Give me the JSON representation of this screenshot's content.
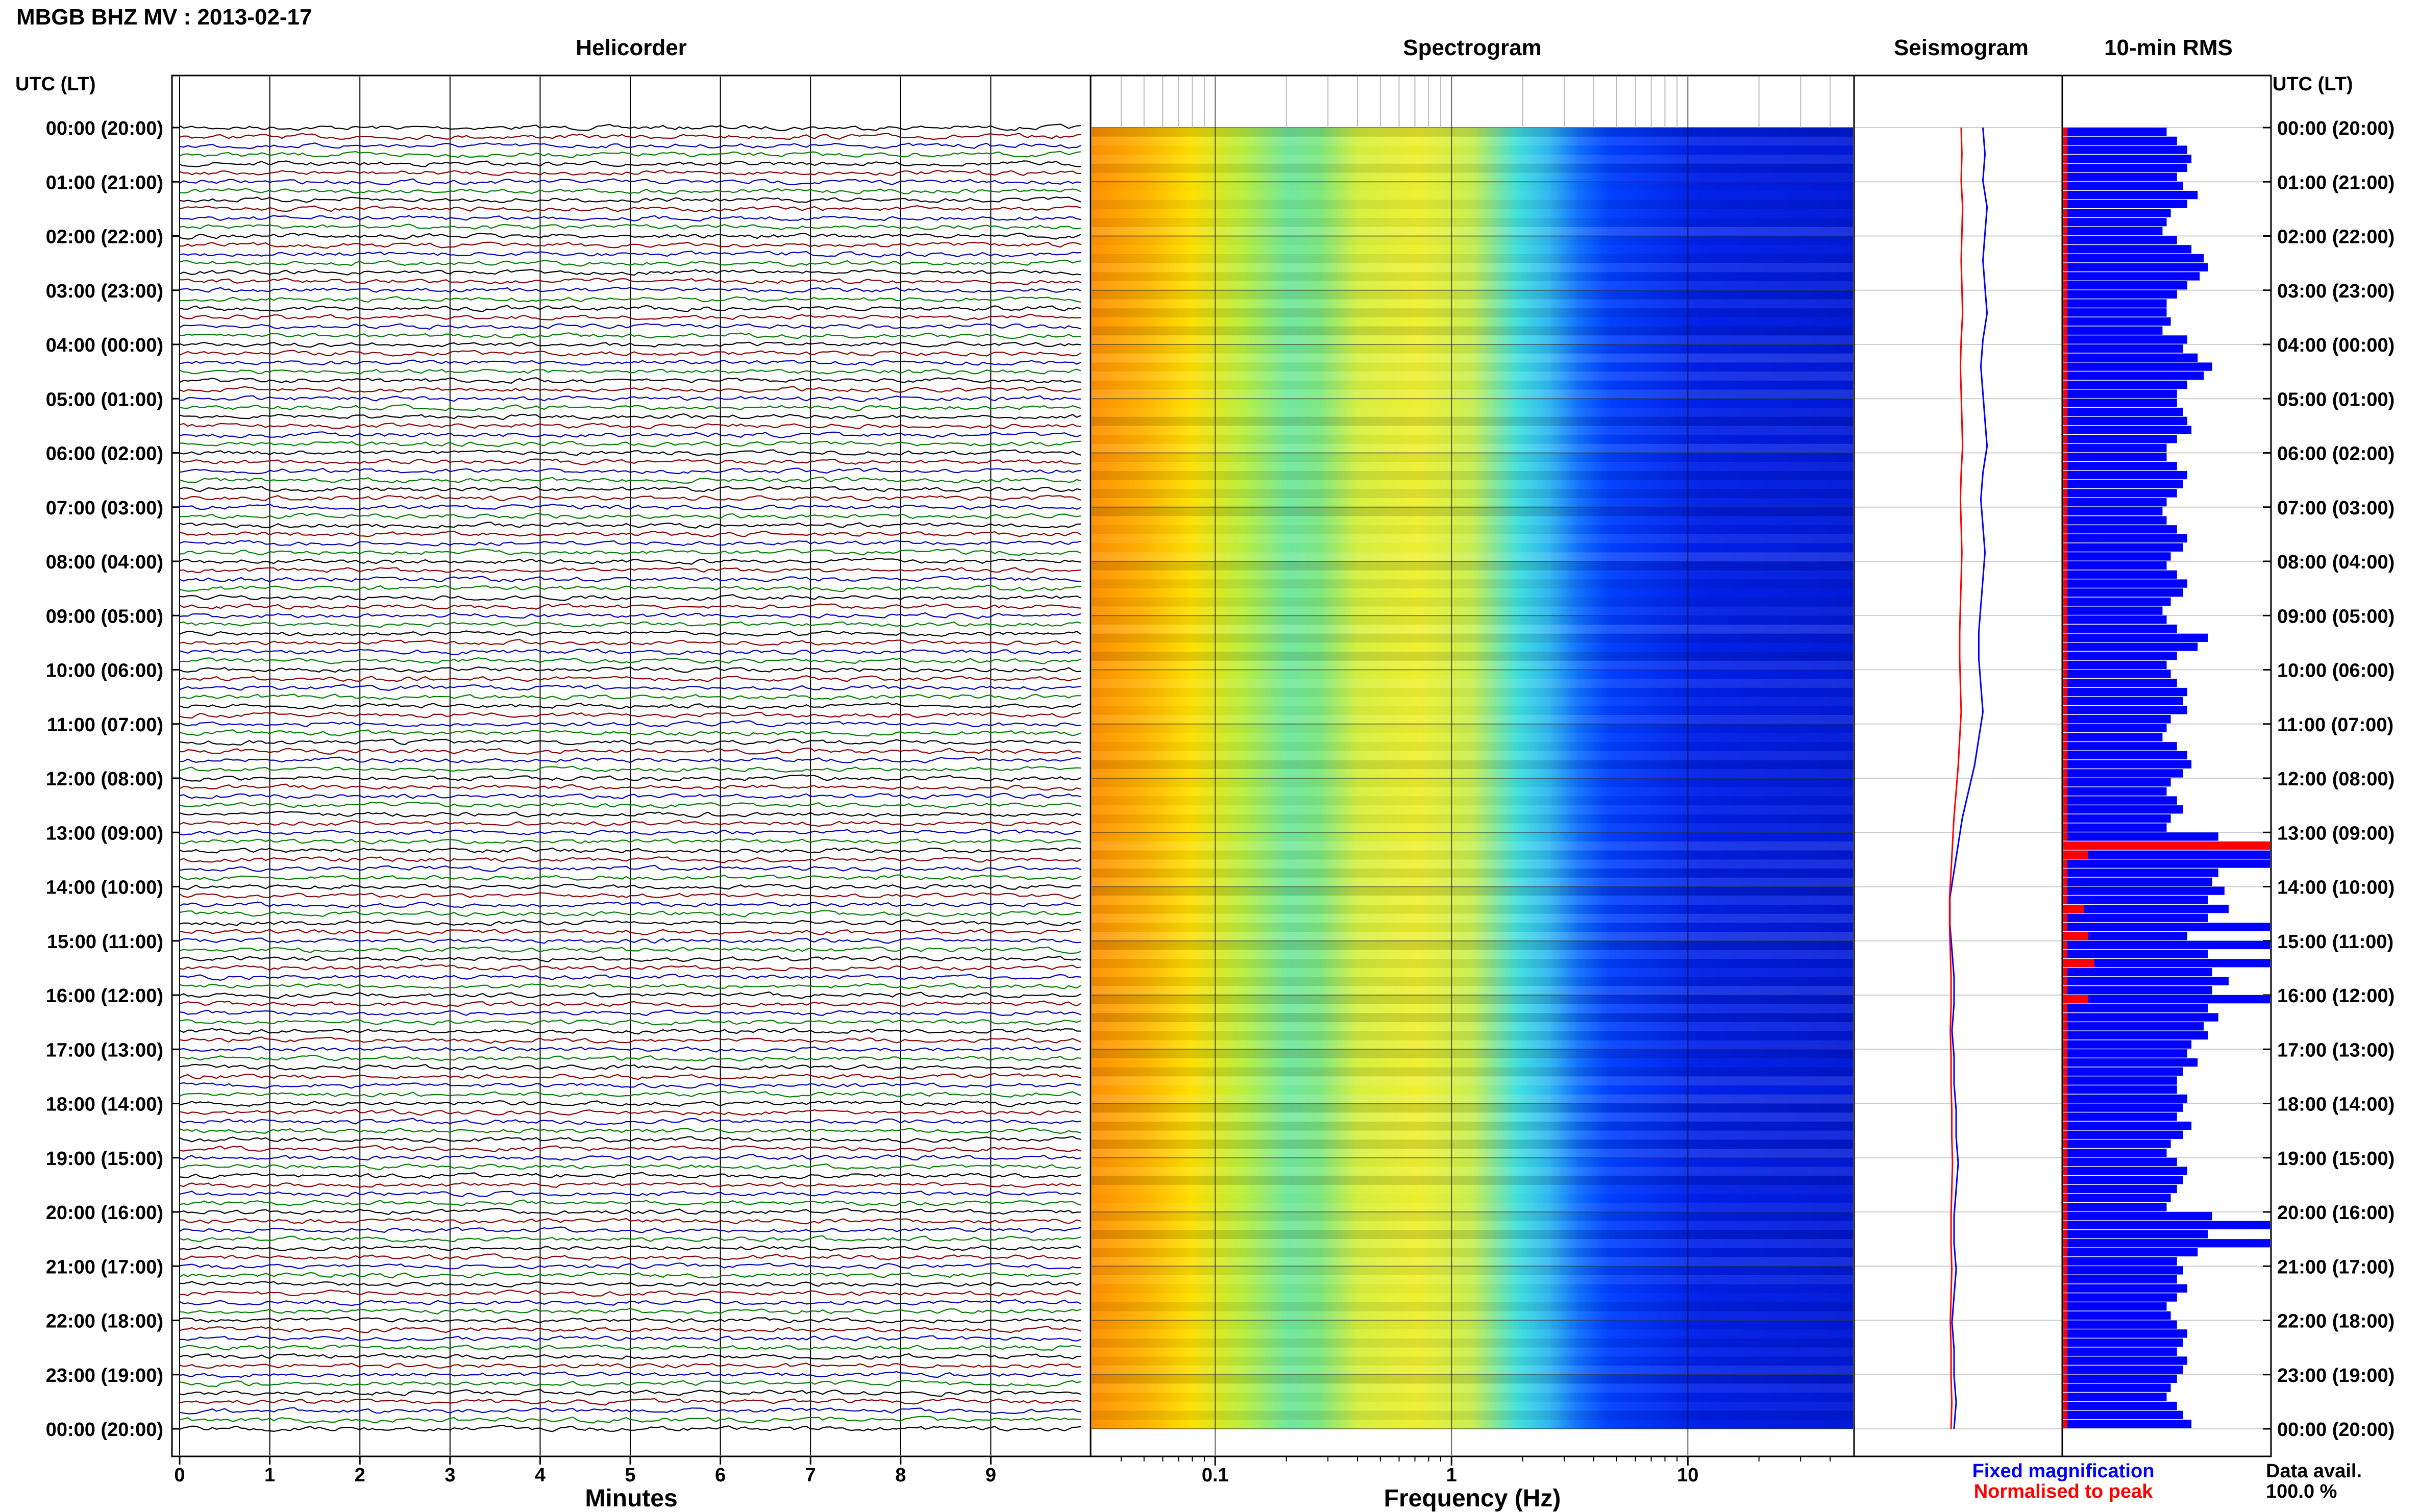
{
  "header": {
    "title": "MBGB BHZ MV : 2013-02-17"
  },
  "panels": {
    "helicorder": "Helicorder",
    "spectrogram": "Spectrogram",
    "seismogram": "Seismogram",
    "rms": "10-min RMS"
  },
  "axes": {
    "left_header": "UTC (LT)",
    "right_header": "UTC (LT)",
    "minutes_label": "Minutes",
    "frequency_label": "Frequency (Hz)"
  },
  "legend": {
    "fixed": "Fixed magnification",
    "normalised": "Normalised to peak",
    "fixed_color": "#0000ff",
    "normalised_color": "#ff0000"
  },
  "data_avail": {
    "label": "Data avail.",
    "value": "100.0 %"
  },
  "colors": {
    "trace_cycle": [
      "#000000",
      "#8b0000",
      "#0000b4",
      "#008000"
    ],
    "rms_bar": "#0000ff",
    "rms_norm": "#ff0000"
  },
  "chart_data": {
    "type": "heatmap",
    "time_labels": [
      "00:00 (20:00)",
      "01:00 (21:00)",
      "02:00 (22:00)",
      "03:00 (23:00)",
      "04:00 (00:00)",
      "05:00 (01:00)",
      "06:00 (02:00)",
      "07:00 (03:00)",
      "08:00 (04:00)",
      "09:00 (05:00)",
      "10:00 (06:00)",
      "11:00 (07:00)",
      "12:00 (08:00)",
      "13:00 (09:00)",
      "14:00 (10:00)",
      "15:00 (11:00)",
      "16:00 (12:00)",
      "17:00 (13:00)",
      "18:00 (14:00)",
      "19:00 (15:00)",
      "20:00 (16:00)",
      "21:00 (17:00)",
      "22:00 (18:00)",
      "23:00 (19:00)",
      "00:00 (20:00)"
    ],
    "minute_ticks": [
      "0",
      "1",
      "2",
      "3",
      "4",
      "5",
      "6",
      "7",
      "8",
      "9"
    ],
    "frequency_ticks": [
      "0.1",
      "1",
      "10"
    ],
    "xlim_minutes": [
      0,
      10
    ],
    "xlim_frequency_hz": [
      0.03,
      50
    ],
    "freq_scale": "log",
    "rms_bins_per_hour": 6,
    "rms_blue": [
      0.5,
      0.55,
      0.6,
      0.62,
      0.6,
      0.55,
      0.58,
      0.65,
      0.6,
      0.52,
      0.5,
      0.48,
      0.55,
      0.62,
      0.68,
      0.7,
      0.66,
      0.6,
      0.55,
      0.5,
      0.5,
      0.52,
      0.48,
      0.6,
      0.58,
      0.65,
      0.72,
      0.68,
      0.6,
      0.55,
      0.55,
      0.58,
      0.6,
      0.62,
      0.55,
      0.5,
      0.5,
      0.55,
      0.6,
      0.58,
      0.55,
      0.5,
      0.48,
      0.5,
      0.55,
      0.6,
      0.58,
      0.52,
      0.5,
      0.55,
      0.6,
      0.58,
      0.52,
      0.48,
      0.5,
      0.55,
      0.7,
      0.65,
      0.55,
      0.5,
      0.52,
      0.55,
      0.6,
      0.58,
      0.6,
      0.52,
      0.5,
      0.48,
      0.55,
      0.6,
      0.62,
      0.58,
      0.52,
      0.5,
      0.55,
      0.58,
      0.52,
      0.5,
      0.75,
      0.7,
      1.0,
      1.0,
      0.75,
      0.72,
      0.78,
      0.7,
      0.8,
      0.7,
      1.0,
      0.6,
      1.0,
      0.7,
      1.0,
      0.72,
      0.8,
      0.72,
      1.0,
      0.7,
      0.75,
      0.68,
      0.7,
      0.62,
      0.6,
      0.65,
      0.58,
      0.55,
      0.55,
      0.6,
      0.58,
      0.55,
      0.62,
      0.58,
      0.52,
      0.5,
      0.55,
      0.6,
      0.58,
      0.55,
      0.52,
      0.5,
      0.72,
      1.0,
      0.7,
      1.0,
      0.65,
      0.55,
      0.58,
      0.55,
      0.6,
      0.55,
      0.5,
      0.52,
      0.55,
      0.6,
      0.58,
      0.55,
      0.6,
      0.58,
      0.55,
      0.52,
      0.5,
      0.55,
      0.58,
      0.62
    ],
    "rms_red": [
      0.02,
      0.02,
      0.02,
      0.02,
      0.02,
      0.02,
      0.02,
      0.02,
      0.02,
      0.02,
      0.02,
      0.02,
      0.02,
      0.02,
      0.02,
      0.02,
      0.02,
      0.02,
      0.02,
      0.02,
      0.02,
      0.02,
      0.02,
      0.02,
      0.02,
      0.02,
      0.02,
      0.02,
      0.02,
      0.02,
      0.02,
      0.02,
      0.02,
      0.02,
      0.02,
      0.02,
      0.02,
      0.02,
      0.02,
      0.02,
      0.02,
      0.02,
      0.02,
      0.02,
      0.02,
      0.02,
      0.02,
      0.02,
      0.02,
      0.02,
      0.02,
      0.02,
      0.02,
      0.02,
      0.02,
      0.02,
      0.02,
      0.02,
      0.02,
      0.02,
      0.02,
      0.02,
      0.02,
      0.02,
      0.02,
      0.02,
      0.02,
      0.02,
      0.02,
      0.02,
      0.02,
      0.02,
      0.02,
      0.02,
      0.02,
      0.02,
      0.02,
      0.02,
      0.02,
      1.0,
      0.12,
      0.02,
      0.02,
      0.02,
      0.02,
      0.02,
      0.1,
      0.02,
      0.02,
      0.12,
      0.02,
      0.02,
      0.15,
      0.02,
      0.02,
      0.02,
      0.12,
      0.02,
      0.02,
      0.02,
      0.02,
      0.02,
      0.02,
      0.02,
      0.02,
      0.02,
      0.02,
      0.02,
      0.02,
      0.02,
      0.02,
      0.02,
      0.02,
      0.02,
      0.02,
      0.02,
      0.02,
      0.02,
      0.02,
      0.02,
      0.02,
      0.02,
      0.02,
      0.02,
      0.02,
      0.02,
      0.02,
      0.02,
      0.02,
      0.02,
      0.02,
      0.02,
      0.02,
      0.02,
      0.02,
      0.02,
      0.02,
      0.02,
      0.02,
      0.02,
      0.02,
      0.02,
      0.02,
      0.02
    ],
    "seismogram_norm": [
      0.62,
      0.63,
      0.62,
      0.64,
      0.63,
      0.62,
      0.63,
      0.64,
      0.62,
      0.61,
      0.62,
      0.63,
      0.64,
      0.62,
      0.61,
      0.62,
      0.63,
      0.62,
      0.61,
      0.6,
      0.6,
      0.61,
      0.62,
      0.6,
      0.58,
      0.55,
      0.52,
      0.5,
      0.48,
      0.46,
      0.46,
      0.47,
      0.48,
      0.48,
      0.47,
      0.48,
      0.48,
      0.49,
      0.49,
      0.5,
      0.49,
      0.48,
      0.48,
      0.49,
      0.48,
      0.47,
      0.48,
      0.48,
      0.49,
      0.48
    ]
  }
}
